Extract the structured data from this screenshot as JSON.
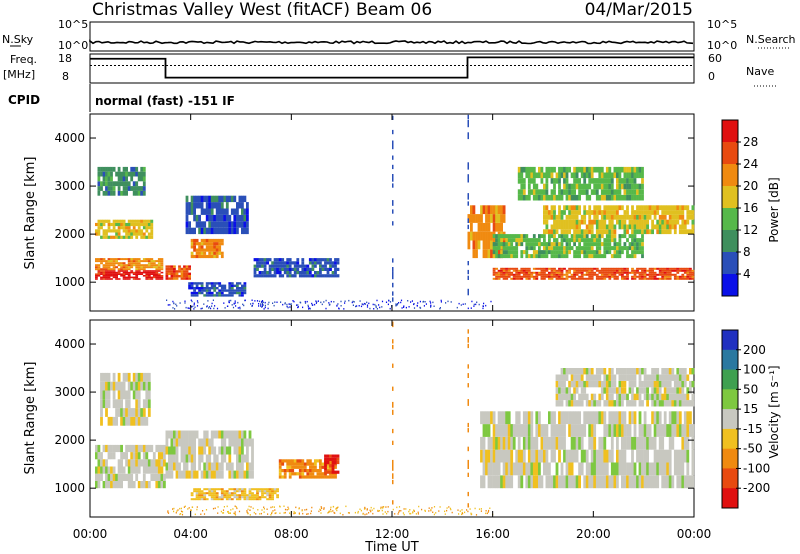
{
  "header": {
    "station": "Christmas Valley West (fitACF)",
    "beam": "Beam 06",
    "date": "04/Mar/2015"
  },
  "strip_panels": {
    "nsky": {
      "label": "N.Sky",
      "ticks": [
        "10^5",
        "10^0"
      ]
    },
    "nsearch": {
      "label": "N.Search",
      "ticks": [
        "10^5",
        "10^0"
      ]
    },
    "freq": {
      "label1": "Freq.",
      "label2": "[MHz]",
      "ticks": [
        "18",
        "8"
      ]
    },
    "nave": {
      "label": "Nave",
      "ticks": [
        "60",
        "0"
      ]
    },
    "cpid": {
      "label": "CPID",
      "value": "normal (fast) -151 IF"
    }
  },
  "colors": {
    "power_scale": [
      "#0a10e8",
      "#2a4fb8",
      "#3f8f5e",
      "#56b84a",
      "#e0c020",
      "#f08a10",
      "#e84a10",
      "#e01010"
    ],
    "velocity_scale": [
      "#2030c0",
      "#2a78a0",
      "#3fa050",
      "#7ec840",
      "#c8c8c0",
      "#f0c020",
      "#f08a10",
      "#e84a10",
      "#e01010"
    ]
  },
  "chart_data": [
    {
      "type": "heatmap",
      "title": "",
      "ylabel": "Slant Range [km]",
      "xlabel": "",
      "x_ticks": [
        "00:00",
        "04:00",
        "08:00",
        "12:00",
        "16:00",
        "20:00",
        "00:00"
      ],
      "y_ticks": [
        "1000",
        "2000",
        "3000",
        "4000"
      ],
      "xlim_hours": [
        0,
        24
      ],
      "ylim_km": [
        400,
        4500
      ],
      "colorbar": {
        "label": "Power [dB]",
        "ticks": [
          "4",
          "8",
          "12",
          "16",
          "20",
          "24",
          "28"
        ]
      },
      "bands": [
        {
          "start_h": 0.2,
          "end_h": 2.9,
          "range_km": [
            1050,
            1250
          ],
          "level": 7
        },
        {
          "start_h": 0.2,
          "end_h": 2.9,
          "range_km": [
            1250,
            1500
          ],
          "level": 5
        },
        {
          "start_h": 0.2,
          "end_h": 2.5,
          "range_km": [
            1900,
            2300
          ],
          "level": 4
        },
        {
          "start_h": 0.3,
          "end_h": 2.2,
          "range_km": [
            2800,
            3400
          ],
          "level": 2
        },
        {
          "start_h": 3.0,
          "end_h": 4.0,
          "range_km": [
            1050,
            1350
          ],
          "level": 6
        },
        {
          "start_h": 4.0,
          "end_h": 5.3,
          "range_km": [
            1500,
            1900
          ],
          "level": 5
        },
        {
          "start_h": 3.8,
          "end_h": 6.3,
          "range_km": [
            2000,
            2800
          ],
          "level": 1
        },
        {
          "start_h": 3.9,
          "end_h": 6.2,
          "range_km": [
            700,
            1000
          ],
          "level": 1
        },
        {
          "start_h": 6.5,
          "end_h": 9.9,
          "range_km": [
            1100,
            1500
          ],
          "level": 1
        },
        {
          "start_h": 15.0,
          "end_h": 16.5,
          "range_km": [
            1500,
            2600
          ],
          "level": 5
        },
        {
          "start_h": 16.0,
          "end_h": 24.0,
          "range_km": [
            1050,
            1300
          ],
          "level": 6
        },
        {
          "start_h": 16.0,
          "end_h": 22.0,
          "range_km": [
            1500,
            2000
          ],
          "level": 3
        },
        {
          "start_h": 18.0,
          "end_h": 24.0,
          "range_km": [
            2000,
            2600
          ],
          "level": 4
        },
        {
          "start_h": 17.0,
          "end_h": 22.0,
          "range_km": [
            2700,
            3400
          ],
          "level": 3
        }
      ]
    },
    {
      "type": "heatmap",
      "title": "",
      "ylabel": "Slant Range [km]",
      "xlabel": "Time UT",
      "x_ticks": [
        "00:00",
        "04:00",
        "08:00",
        "12:00",
        "16:00",
        "20:00",
        "00:00"
      ],
      "y_ticks": [
        "1000",
        "2000",
        "3000",
        "4000"
      ],
      "xlim_hours": [
        0,
        24
      ],
      "ylim_km": [
        400,
        4500
      ],
      "colorbar": {
        "label": "Velocity [m s⁻¹]",
        "ticks": [
          "200",
          "100",
          "50",
          "15",
          "-15",
          "-50",
          "-100",
          "-200"
        ]
      },
      "bands": [
        {
          "start_h": 0.2,
          "end_h": 3.0,
          "range_km": [
            1000,
            1900
          ],
          "level": 4
        },
        {
          "start_h": 0.4,
          "end_h": 2.4,
          "range_km": [
            2300,
            3400
          ],
          "level": 4
        },
        {
          "start_h": 3.0,
          "end_h": 6.5,
          "range_km": [
            1200,
            2200
          ],
          "level": 4
        },
        {
          "start_h": 4.0,
          "end_h": 7.5,
          "range_km": [
            750,
            1000
          ],
          "level": 5
        },
        {
          "start_h": 7.5,
          "end_h": 9.8,
          "range_km": [
            1200,
            1600
          ],
          "level": 6
        },
        {
          "start_h": 9.3,
          "end_h": 9.9,
          "range_km": [
            1300,
            1700
          ],
          "level": 8
        },
        {
          "start_h": 15.5,
          "end_h": 24.0,
          "range_km": [
            1000,
            2600
          ],
          "level": 4
        },
        {
          "start_h": 18.5,
          "end_h": 24.0,
          "range_km": [
            2700,
            3500
          ],
          "level": 4
        }
      ]
    }
  ]
}
